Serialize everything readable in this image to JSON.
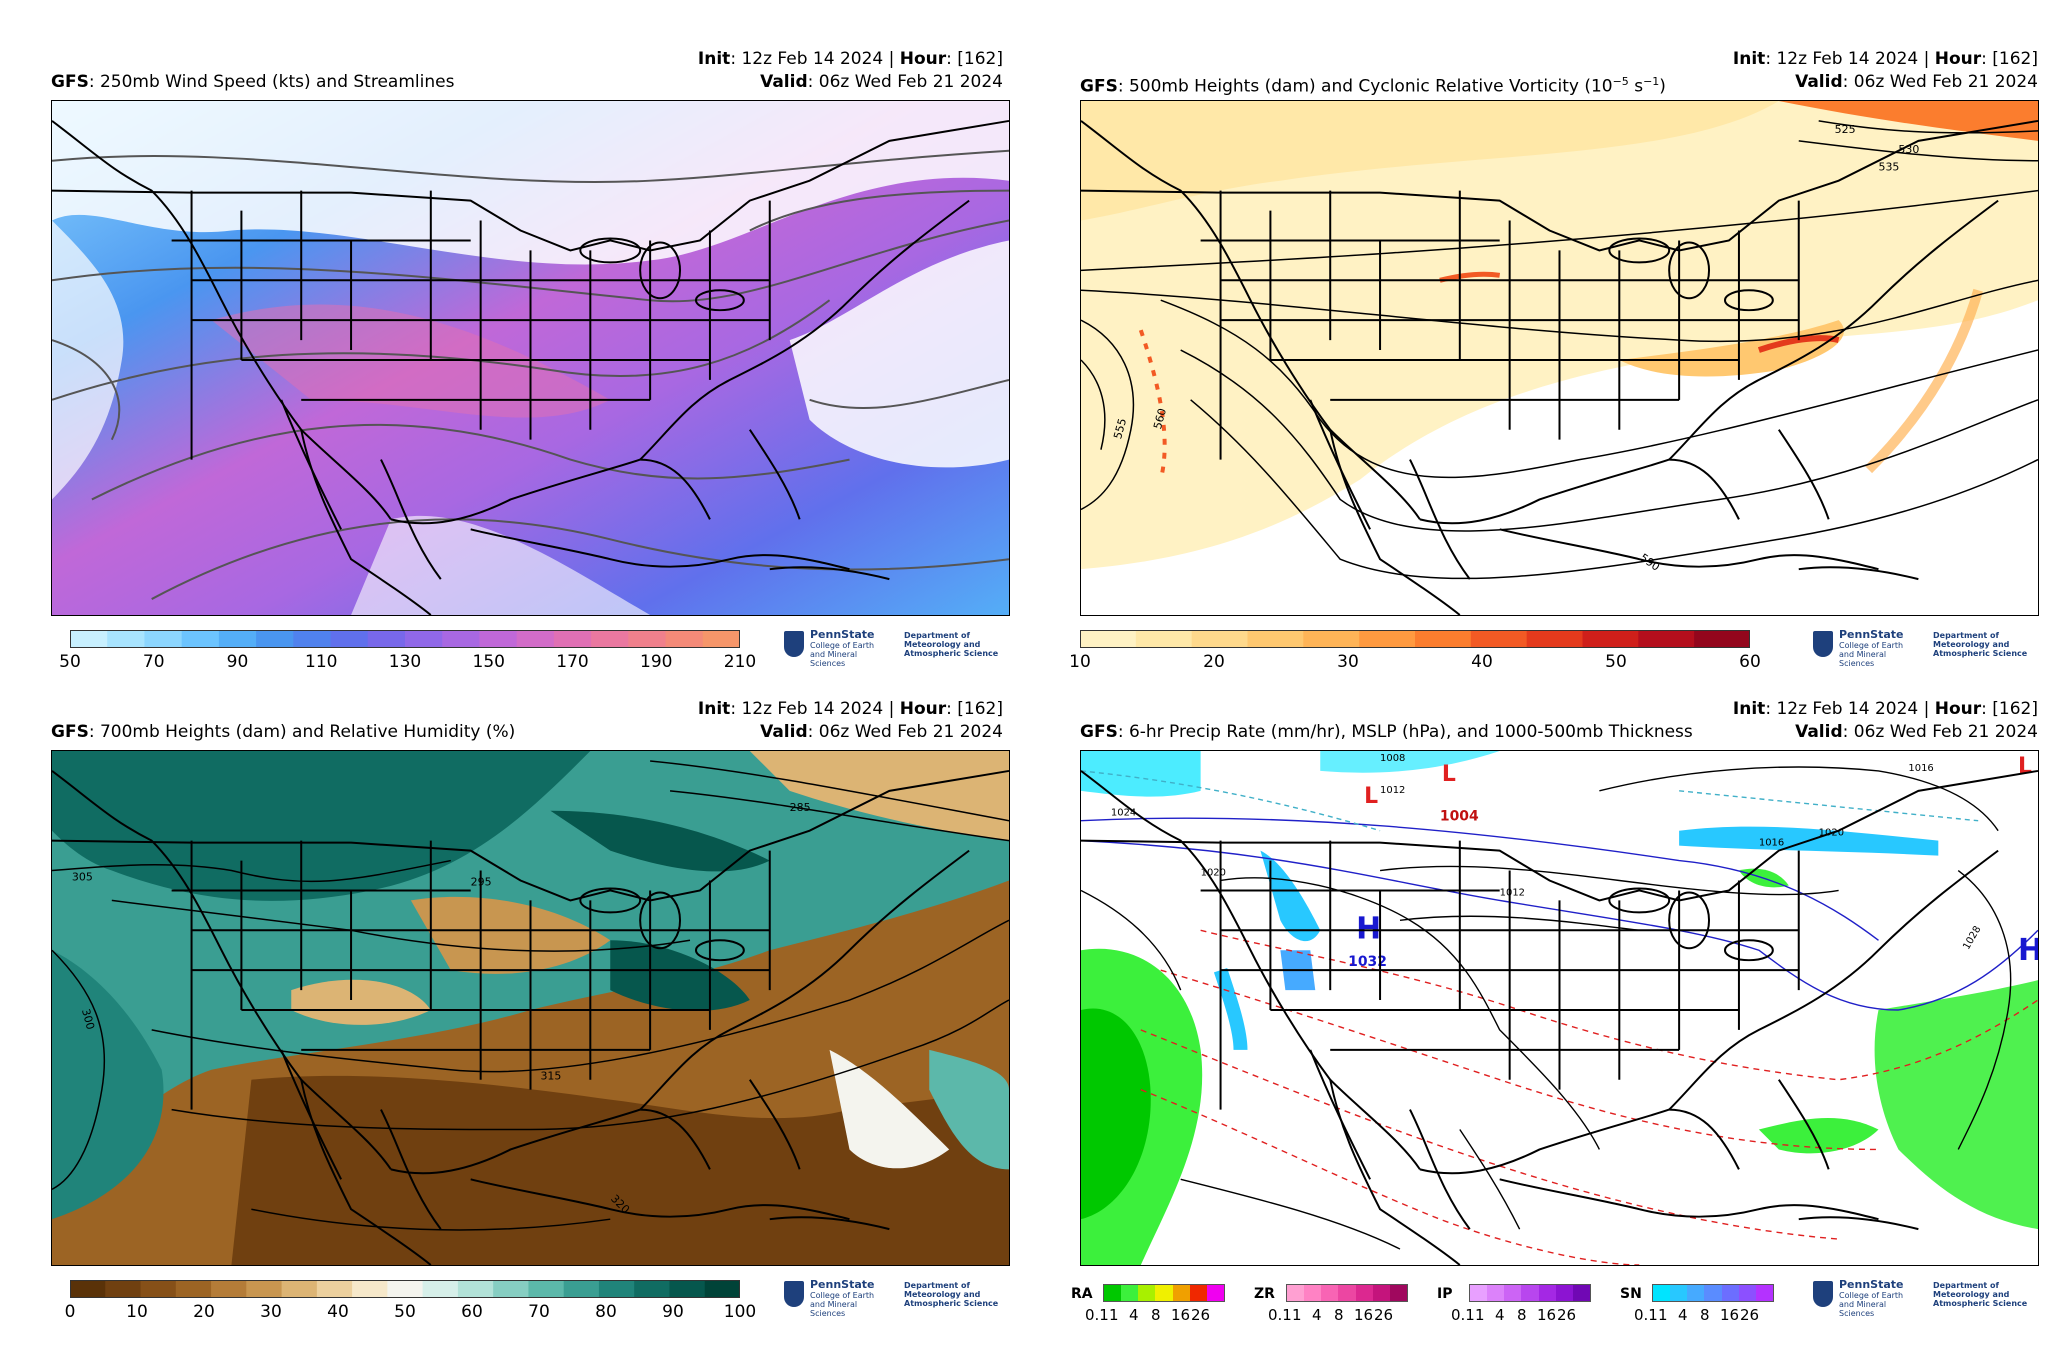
{
  "panels": [
    {
      "init_label": "Init",
      "init_value": ": 12z Feb 14 2024 | ",
      "hour_label": "Hour",
      "hour_value": ": [162]",
      "model": "GFS",
      "title": ": 250mb Wind Speed (kts) and Streamlines",
      "valid_label": "Valid",
      "valid_value": ": 06z Wed Feb 21 2024",
      "colorbar": {
        "ticks": [
          "50",
          "70",
          "90",
          "110",
          "130",
          "150",
          "170",
          "190",
          "210"
        ],
        "colors": [
          "#c8f0ff",
          "#a8e4ff",
          "#8cd6ff",
          "#6cc4ff",
          "#54aef7",
          "#4a96f0",
          "#5082ee",
          "#6070ec",
          "#7868ea",
          "#9068e8",
          "#a868e2",
          "#c068d8",
          "#d26cc8",
          "#e070b4",
          "#ea78a0",
          "#f0808c",
          "#f48a78",
          "#f6966a"
        ]
      }
    },
    {
      "init_label": "Init",
      "init_value": ": 12z Feb 14 2024 | ",
      "hour_label": "Hour",
      "hour_value": ": [162]",
      "model": "GFS",
      "title": ": 500mb Heights (dam) and Cyclonic Relative Vorticity (10",
      "title_sup1": "−5",
      "title_mid": " s",
      "title_sup2": "−1",
      "title_end": ")",
      "valid_label": "Valid",
      "valid_value": ": 06z Wed Feb 21 2024",
      "contour_labels": [
        "525",
        "530",
        "535",
        "555",
        "560",
        "590"
      ],
      "colorbar": {
        "ticks": [
          "10",
          "20",
          "30",
          "40",
          "50",
          "60"
        ],
        "colors": [
          "#fff2c4",
          "#ffe8a8",
          "#ffd98c",
          "#ffc870",
          "#ffb457",
          "#ff9a40",
          "#fb7d2e",
          "#f25a24",
          "#e43a1c",
          "#cf1f1a",
          "#b40e1c",
          "#93061c"
        ]
      }
    },
    {
      "init_label": "Init",
      "init_value": ": 12z Feb 14 2024 | ",
      "hour_label": "Hour",
      "hour_value": ": [162]",
      "model": "GFS",
      "title": ": 700mb Heights (dam) and Relative Humidity (%)",
      "valid_label": "Valid",
      "valid_value": ": 06z Wed Feb 21 2024",
      "contour_labels": [
        "285",
        "295",
        "300",
        "305",
        "315",
        "320"
      ],
      "colorbar": {
        "ticks": [
          "0",
          "10",
          "20",
          "30",
          "40",
          "50",
          "60",
          "70",
          "80",
          "90",
          "100"
        ],
        "colors": [
          "#5a3208",
          "#704010",
          "#865018",
          "#9c6424",
          "#b47c38",
          "#c89650",
          "#dcb474",
          "#ecd09e",
          "#f6e8ca",
          "#f4f4ee",
          "#d6efe9",
          "#b2e2d8",
          "#86cec2",
          "#5cb8aa",
          "#3a9e92",
          "#20847a",
          "#106c62",
          "#06574d",
          "#004338"
        ]
      }
    },
    {
      "init_label": "Init",
      "init_value": ": 12z Feb 14 2024 | ",
      "hour_label": "Hour",
      "hour_value": ": [162]",
      "model": "GFS",
      "title": ": 6-hr Precip Rate (mm/hr), MSLP (hPa), and 1000-500mb Thickness",
      "valid_label": "Valid",
      "valid_value": ": 06z Wed Feb 21 2024",
      "pressure_labels": [
        "1004",
        "1032",
        "1008",
        "1012",
        "1016",
        "1020",
        "1024",
        "1028"
      ],
      "precip_legend": [
        {
          "type": "RA",
          "colors": [
            "#00c800",
            "#3cf03c",
            "#a8f000",
            "#f0f000",
            "#f0a000",
            "#f02800",
            "#f000f0"
          ],
          "ticks": [
            "0.1",
            "1",
            "4",
            "8",
            "16",
            "26"
          ]
        },
        {
          "type": "ZR",
          "colors": [
            "#ffa0d2",
            "#ff82c4",
            "#f864b4",
            "#ec46a2",
            "#dc2890",
            "#c4147c",
            "#a0085e"
          ],
          "ticks": [
            "0.1",
            "1",
            "4",
            "8",
            "16",
            "26"
          ]
        },
        {
          "type": "IP",
          "colors": [
            "#e8a0ff",
            "#dc82fa",
            "#cc64f5",
            "#b846ee",
            "#a428e4",
            "#8c14d2",
            "#7008b4"
          ],
          "ticks": [
            "0.1",
            "1",
            "4",
            "8",
            "16",
            "26"
          ]
        },
        {
          "type": "SN",
          "colors": [
            "#00e4ff",
            "#28c8ff",
            "#46aaff",
            "#5a8cff",
            "#6c6eff",
            "#8c50ff",
            "#b432ff"
          ],
          "ticks": [
            "0.1",
            "1",
            "4",
            "8",
            "16",
            "26"
          ]
        }
      ]
    }
  ],
  "logo": {
    "name": "PennState",
    "college": "College of Earth and Mineral Sciences",
    "dept": "Department of Meteorology and Atmospheric Science"
  }
}
